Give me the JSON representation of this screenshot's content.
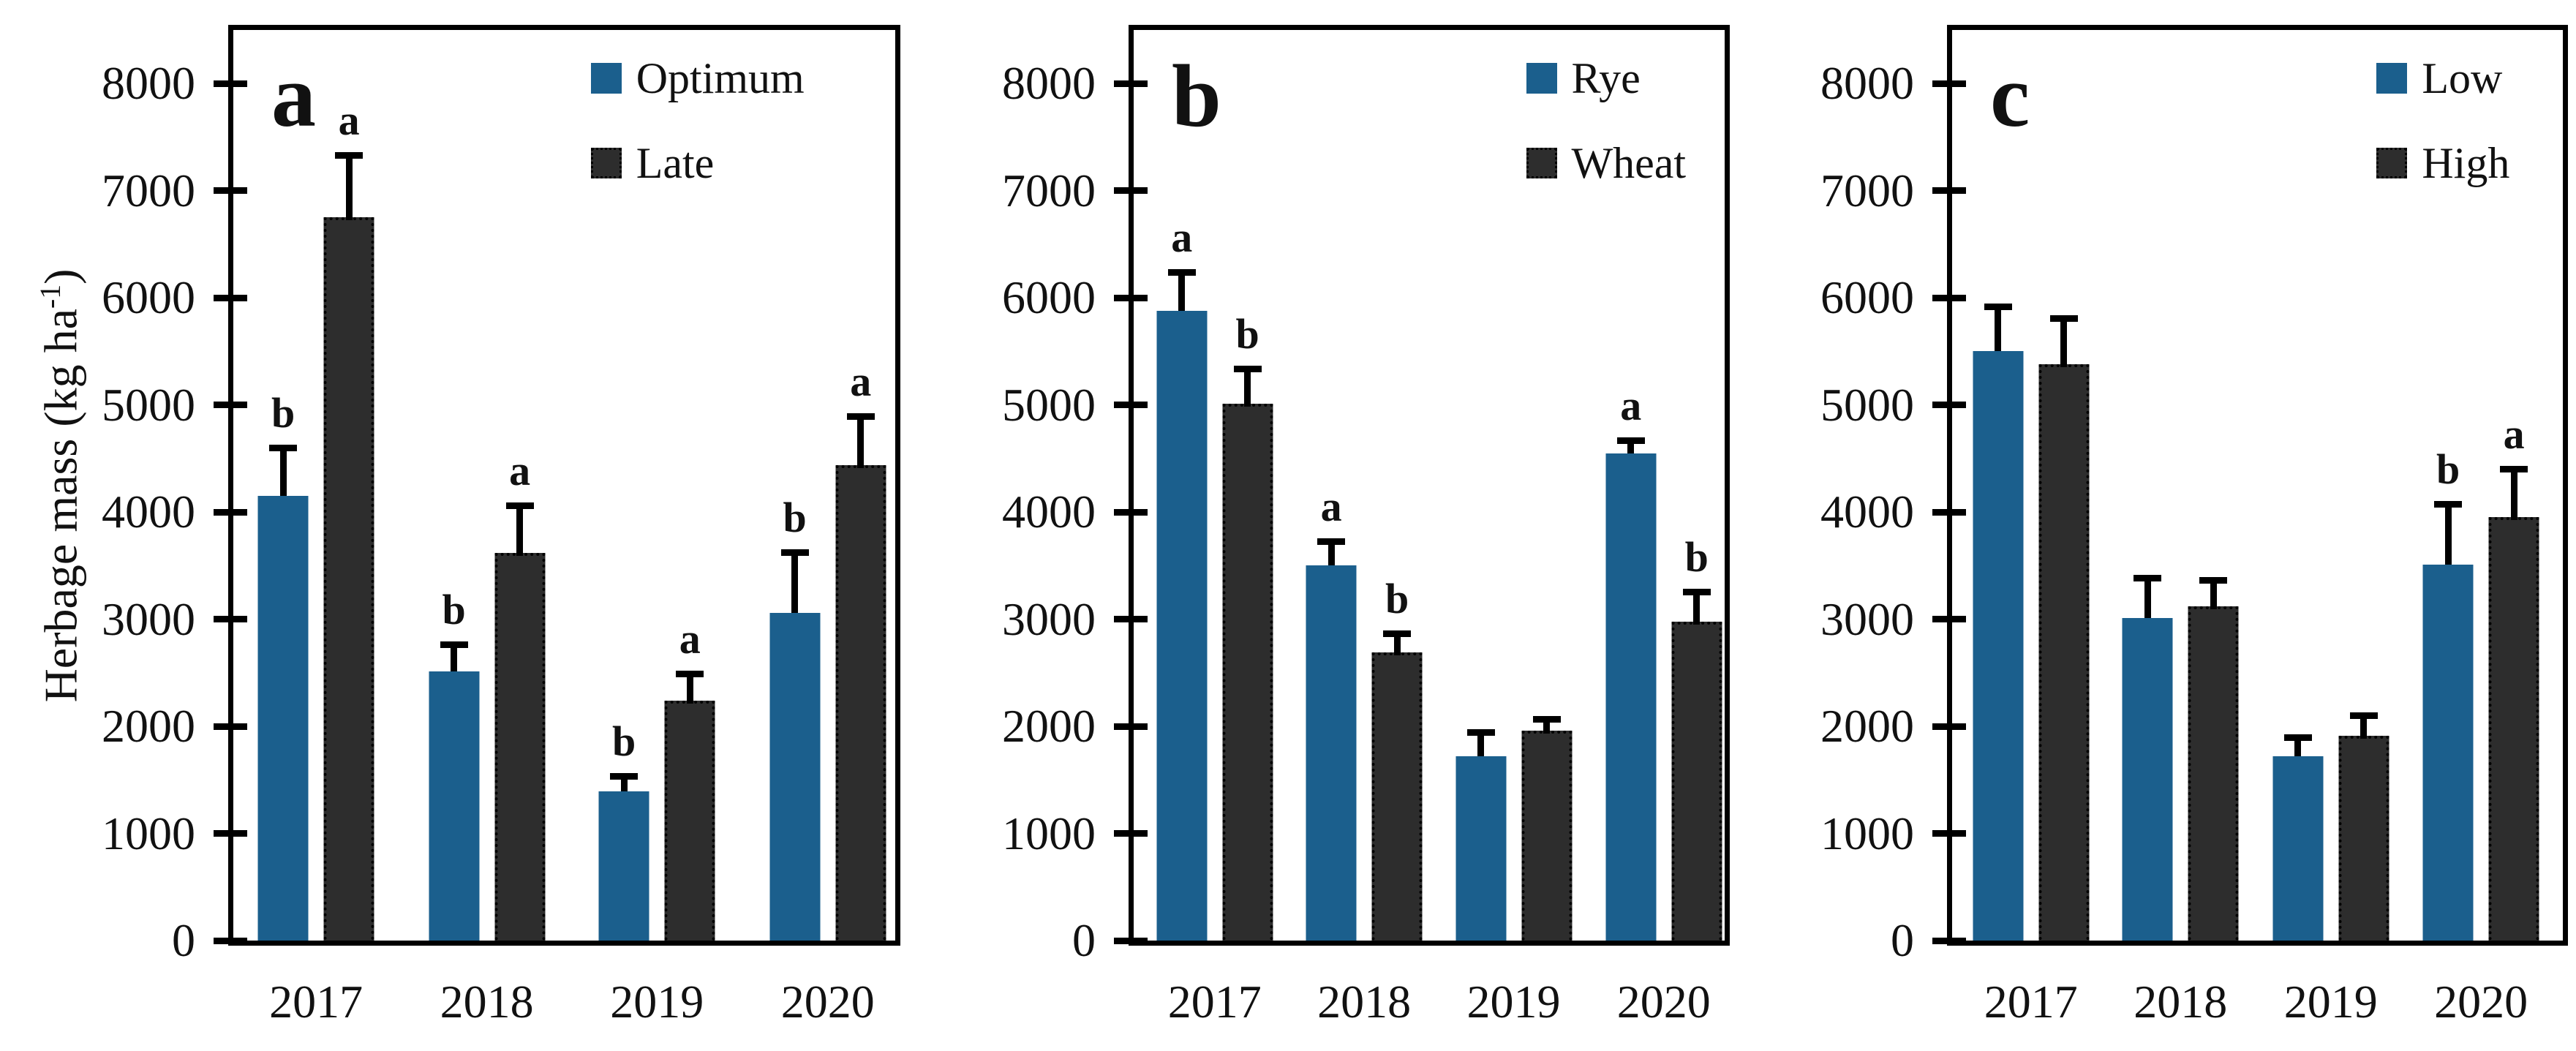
{
  "axis": {
    "ylabel_prefix": "Herbage mass (kg ha",
    "ylabel_sup": "-1",
    "ylabel_suffix": ")"
  },
  "colors": {
    "series_blue": "#1B5F8D",
    "series_dark": "#2D2D2D"
  },
  "chart_data": [
    {
      "type": "bar",
      "panel_label": "a",
      "categories": [
        "2017",
        "2018",
        "2019",
        "2020"
      ],
      "series": [
        {
          "name": "Optimum",
          "color": "#1B5F8D",
          "values": [
            4150,
            2510,
            1390,
            3060
          ],
          "errors": [
            480,
            285,
            175,
            590
          ],
          "sig_letters": [
            "b",
            "b",
            "b",
            "b"
          ]
        },
        {
          "name": "Late",
          "color": "#2D2D2D",
          "values": [
            6750,
            3620,
            2240,
            4440
          ],
          "errors": [
            640,
            500,
            310,
            510
          ],
          "sig_letters": [
            "a",
            "a",
            "a",
            "a"
          ]
        }
      ],
      "ylabel": "Herbage mass (kg ha-1)",
      "ylim": [
        0,
        8500
      ],
      "yticks": [
        0,
        1000,
        2000,
        3000,
        4000,
        5000,
        6000,
        7000,
        8000
      ],
      "grid": false,
      "legend_position": "top-right"
    },
    {
      "type": "bar",
      "panel_label": "b",
      "categories": [
        "2017",
        "2018",
        "2019",
        "2020"
      ],
      "series": [
        {
          "name": "Rye",
          "color": "#1B5F8D",
          "values": [
            5880,
            3500,
            1720,
            4550
          ],
          "errors": [
            390,
            255,
            255,
            150
          ],
          "sig_letters": [
            "a",
            "a",
            "",
            "a"
          ]
        },
        {
          "name": "Wheat",
          "color": "#2D2D2D",
          "values": [
            5010,
            2690,
            1960,
            2980
          ],
          "errors": [
            385,
            230,
            165,
            330
          ],
          "sig_letters": [
            "b",
            "b",
            "",
            "b"
          ]
        }
      ],
      "ylabel": "",
      "ylim": [
        0,
        8500
      ],
      "yticks": [
        0,
        1000,
        2000,
        3000,
        4000,
        5000,
        6000,
        7000,
        8000
      ],
      "grid": false,
      "legend_position": "top-right"
    },
    {
      "type": "bar",
      "panel_label": "c",
      "categories": [
        "2017",
        "2018",
        "2019",
        "2020"
      ],
      "series": [
        {
          "name": "Low",
          "color": "#1B5F8D",
          "values": [
            5500,
            3010,
            1720,
            3510
          ],
          "errors": [
            450,
            405,
            205,
            590
          ],
          "sig_letters": [
            "",
            "",
            "",
            "b"
          ]
        },
        {
          "name": "High",
          "color": "#2D2D2D",
          "values": [
            5380,
            3120,
            1910,
            3950
          ],
          "errors": [
            485,
            300,
            245,
            510
          ],
          "sig_letters": [
            "",
            "",
            "",
            "a"
          ]
        }
      ],
      "ylabel": "",
      "ylim": [
        0,
        8500
      ],
      "yticks": [
        0,
        1000,
        2000,
        3000,
        4000,
        5000,
        6000,
        7000,
        8000
      ],
      "grid": false,
      "legend_position": "top-right"
    }
  ]
}
